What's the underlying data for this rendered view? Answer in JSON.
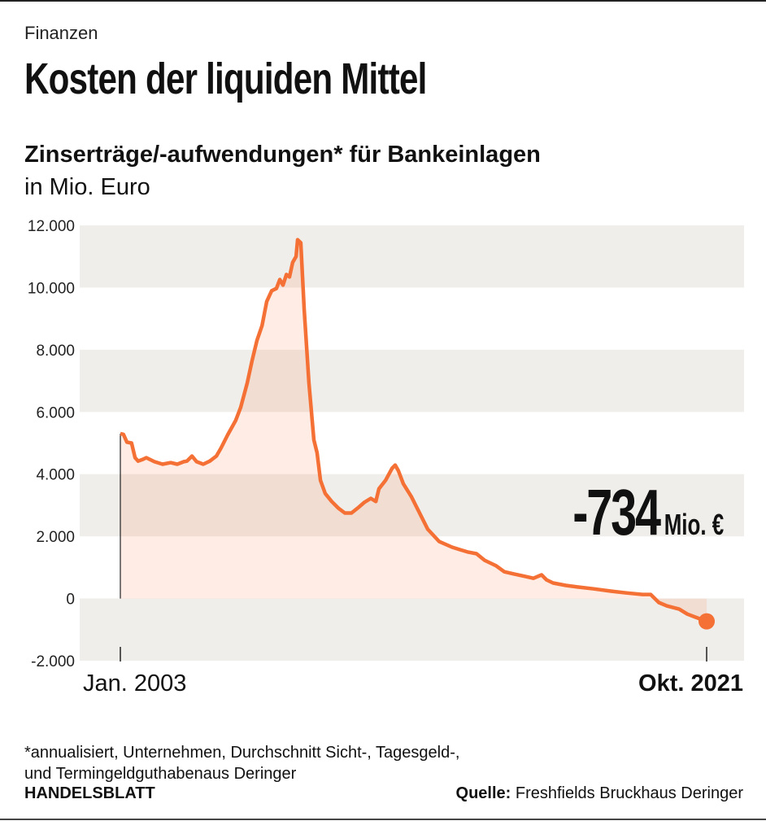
{
  "header": {
    "kicker": "Finanzen",
    "title": "Kosten der liquiden Mittel",
    "subtitle": "Zinserträge/-aufwendungen* für Bankeinlagen",
    "unit": "in Mio. Euro"
  },
  "annotation": {
    "value": "-734",
    "unit": "Mio. €"
  },
  "footer": {
    "note_line1": "*annualisiert, Unternehmen, Durchschnitt Sicht-, Tagesgeld-,",
    "note_line2": "und Termingeldguthabenaus Deringer",
    "brand": "HANDELSBLATT",
    "source_label": "Quelle:",
    "source_text": " Freshfields Bruckhaus Deringer"
  },
  "chart_data": {
    "type": "area",
    "title": "Zinserträge/-aufwendungen* für Bankeinlagen",
    "ylabel": "in Mio. Euro",
    "ylim": [
      -2000,
      12000
    ],
    "xlim": [
      2003.0,
      2021.75
    ],
    "yticks": [
      12000,
      10000,
      8000,
      6000,
      4000,
      2000,
      0,
      -2000
    ],
    "ytick_labels": [
      "12.000",
      "10.000",
      "8.000",
      "6.000",
      "4.000",
      "2.000",
      "0",
      "-2.000"
    ],
    "xtick_labels": [
      "Jan. 2003",
      "Okt. 2021"
    ],
    "grid": "alternating horizontal bands",
    "colors": {
      "line": "#f47035",
      "fill": "#fde9df",
      "band": "#f0eeea"
    },
    "x": [
      2003.0,
      2003.1,
      2003.21,
      2003.36,
      2003.47,
      2003.57,
      2003.73,
      2003.83,
      2004.09,
      2004.35,
      2004.61,
      2004.82,
      2005.03,
      2005.13,
      2005.29,
      2005.44,
      2005.65,
      2005.86,
      2006.07,
      2006.22,
      2006.43,
      2006.69,
      2006.85,
      2007.06,
      2007.21,
      2007.37,
      2007.53,
      2007.68,
      2007.84,
      2007.99,
      2008.1,
      2008.2,
      2008.31,
      2008.41,
      2008.51,
      2008.62,
      2008.67,
      2008.77,
      2008.88,
      2009.03,
      2009.19,
      2009.29,
      2009.4,
      2009.55,
      2009.76,
      2009.97,
      2010.18,
      2010.39,
      2010.59,
      2010.8,
      2011.01,
      2011.17,
      2011.27,
      2011.48,
      2011.69,
      2011.79,
      2011.89,
      2012.05,
      2012.31,
      2012.57,
      2012.83,
      2013.2,
      2013.61,
      2013.87,
      2014.13,
      2014.39,
      2014.65,
      2015.02,
      2015.28,
      2015.59,
      2015.95,
      2016.21,
      2016.47,
      2016.63,
      2016.84,
      2017.25,
      2017.62,
      2018.14,
      2018.66,
      2019.18,
      2019.7,
      2019.96,
      2020.22,
      2020.48,
      2020.87,
      2021.13,
      2021.39,
      2021.75
    ],
    "values": [
      5300,
      5280,
      5030,
      5000,
      4530,
      4420,
      4480,
      4530,
      4400,
      4320,
      4370,
      4320,
      4400,
      4420,
      4580,
      4400,
      4320,
      4420,
      4580,
      4840,
      5260,
      5730,
      6150,
      6940,
      7640,
      8300,
      8770,
      9550,
      9900,
      9970,
      10260,
      10080,
      10420,
      10340,
      10810,
      11000,
      11540,
      11440,
      9290,
      6940,
      5100,
      4690,
      3800,
      3380,
      3120,
      2910,
      2750,
      2750,
      2910,
      3090,
      3220,
      3120,
      3530,
      3800,
      4190,
      4290,
      4110,
      3690,
      3270,
      2750,
      2230,
      1830,
      1650,
      1570,
      1490,
      1440,
      1230,
      1050,
      860,
      790,
      710,
      650,
      760,
      600,
      500,
      420,
      370,
      310,
      240,
      180,
      130,
      130,
      -130,
      -240,
      -340,
      -500,
      -600,
      -734
    ],
    "highlight": {
      "x": 2021.75,
      "value": -734,
      "label": "-734 Mio. €"
    }
  }
}
